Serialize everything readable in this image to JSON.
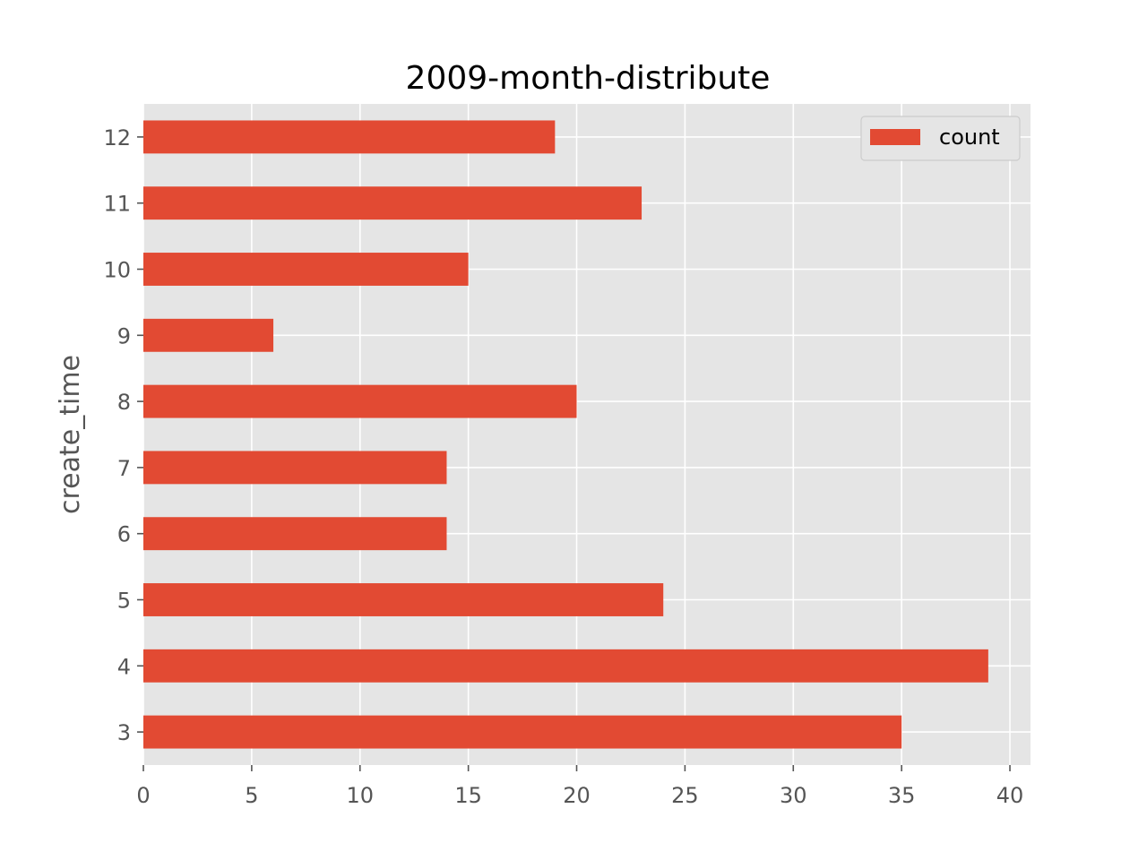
{
  "chart_data": {
    "type": "bar",
    "orientation": "horizontal",
    "title": "2009-month-distribute",
    "xlabel": "",
    "ylabel": "create_time",
    "categories": [
      "3",
      "4",
      "5",
      "6",
      "7",
      "8",
      "9",
      "10",
      "11",
      "12"
    ],
    "series": [
      {
        "name": "count",
        "values": [
          35,
          39,
          24,
          14,
          14,
          20,
          6,
          15,
          23,
          19
        ]
      }
    ],
    "xlim": [
      0,
      40.95
    ],
    "xticks": [
      0,
      5,
      10,
      15,
      20,
      25,
      30,
      35,
      40
    ],
    "grid": true,
    "legend_position": "top-right",
    "colors": {
      "bar": "#e24a33",
      "background": "#e5e5e5",
      "grid": "#ffffff",
      "tick_text": "#555555"
    }
  }
}
